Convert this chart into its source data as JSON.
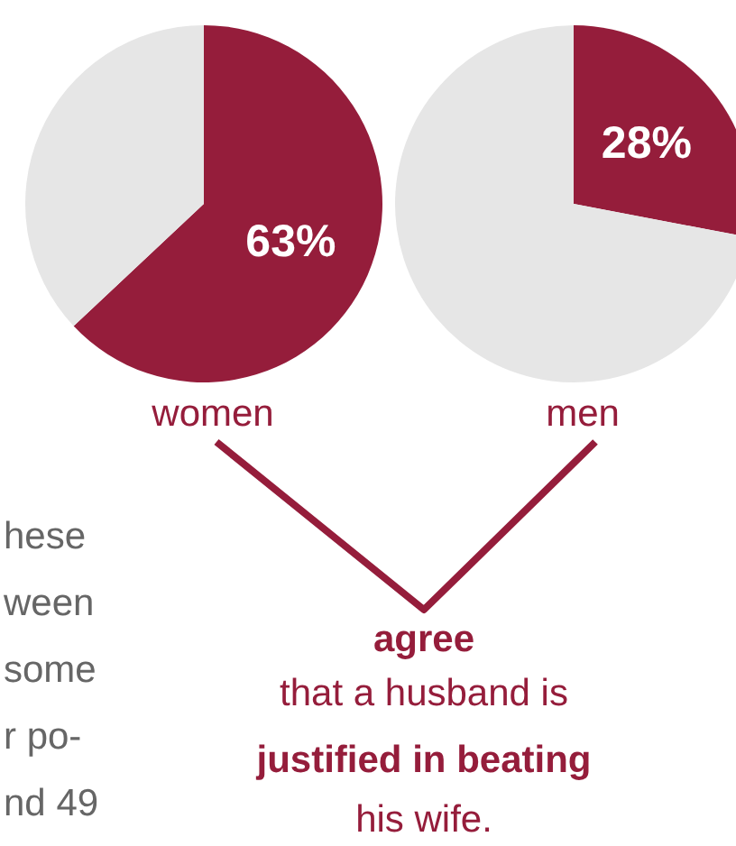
{
  "chart_data": [
    {
      "type": "pie",
      "title": "women",
      "categories": [
        null,
        null
      ],
      "values": [
        63,
        37
      ],
      "colors": [
        "#951d3b",
        "#e6e6e6"
      ],
      "value_labels": [
        "63%",
        null
      ]
    },
    {
      "type": "pie",
      "title": "men",
      "categories": [
        null,
        null
      ],
      "values": [
        28,
        72
      ],
      "colors": [
        "#951d3b",
        "#e6e6e6"
      ],
      "value_labels": [
        "28%",
        null
      ]
    },
    {
      "type": "other",
      "annotations": [
        "hese",
        "ween",
        "some",
        "r po-",
        "nd 49",
        "agree",
        "that a husband is",
        "justified in beating",
        "his wife."
      ]
    }
  ]
}
